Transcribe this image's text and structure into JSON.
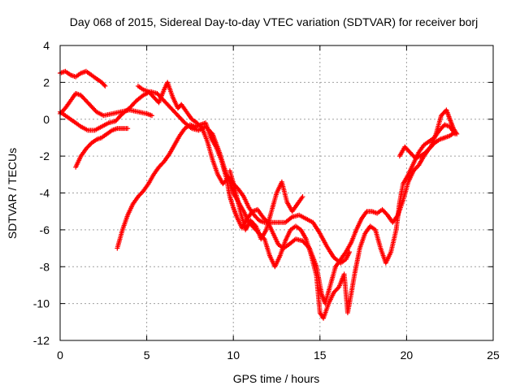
{
  "chart_data": {
    "type": "scatter",
    "title": "Day 068 of 2015, Sidereal Day-to-day VTEC variation (SDTVAR) for receiver borj",
    "xlabel": "GPS time / hours",
    "ylabel": "SDTVAR / TECUs",
    "xlim": [
      0,
      25
    ],
    "ylim": [
      -12,
      4
    ],
    "xticks": [
      0,
      5,
      10,
      15,
      20,
      25
    ],
    "yticks": [
      -12,
      -10,
      -8,
      -6,
      -4,
      -2,
      0,
      2,
      4
    ],
    "grid": true,
    "marker": "+",
    "series_color": "#ff0000",
    "series": [
      {
        "values": [
          [
            0.0,
            2.5
          ],
          [
            0.3,
            2.6
          ],
          [
            0.6,
            2.4
          ],
          [
            0.9,
            2.3
          ],
          [
            1.2,
            2.5
          ],
          [
            1.5,
            2.6
          ],
          [
            1.8,
            2.4
          ],
          [
            2.1,
            2.2
          ],
          [
            2.4,
            2.0
          ],
          [
            2.6,
            1.8
          ]
        ]
      },
      {
        "values": [
          [
            0.0,
            0.3
          ],
          [
            0.3,
            0.6
          ],
          [
            0.6,
            1.0
          ],
          [
            0.9,
            1.4
          ],
          [
            1.2,
            1.3
          ],
          [
            1.5,
            1.0
          ],
          [
            1.8,
            0.7
          ],
          [
            2.1,
            0.4
          ],
          [
            2.5,
            0.2
          ],
          [
            3.0,
            0.3
          ],
          [
            3.5,
            0.4
          ],
          [
            4.0,
            0.5
          ],
          [
            4.5,
            0.4
          ],
          [
            5.0,
            0.3
          ],
          [
            5.3,
            0.2
          ]
        ]
      },
      {
        "values": [
          [
            0.0,
            0.4
          ],
          [
            0.3,
            0.2
          ],
          [
            0.6,
            0.0
          ],
          [
            0.9,
            -0.2
          ],
          [
            1.2,
            -0.4
          ],
          [
            1.6,
            -0.6
          ],
          [
            2.0,
            -0.6
          ],
          [
            2.4,
            -0.4
          ],
          [
            2.8,
            -0.2
          ],
          [
            3.2,
            -0.1
          ],
          [
            3.6,
            0.3
          ],
          [
            4.0,
            0.6
          ],
          [
            4.4,
            1.0
          ],
          [
            4.8,
            1.3
          ],
          [
            5.2,
            1.5
          ],
          [
            5.6,
            1.4
          ],
          [
            6.0,
            1.0
          ],
          [
            6.4,
            0.6
          ],
          [
            6.8,
            0.2
          ],
          [
            7.2,
            -0.2
          ],
          [
            7.6,
            -0.5
          ],
          [
            8.0,
            -0.6
          ],
          [
            8.4,
            -0.4
          ],
          [
            8.8,
            -0.8
          ],
          [
            9.2,
            -1.8
          ],
          [
            9.6,
            -3.0
          ],
          [
            10.0,
            -3.5
          ],
          [
            10.3,
            -3.8
          ],
          [
            10.6,
            -4.2
          ],
          [
            10.9,
            -4.8
          ],
          [
            11.2,
            -5.2
          ],
          [
            11.5,
            -5.5
          ],
          [
            11.8,
            -5.6
          ],
          [
            12.2,
            -5.6
          ],
          [
            12.6,
            -5.6
          ],
          [
            13.0,
            -5.6
          ],
          [
            13.4,
            -5.3
          ],
          [
            13.8,
            -5.2
          ],
          [
            14.2,
            -5.4
          ],
          [
            14.6,
            -5.6
          ],
          [
            15.0,
            -6.2
          ],
          [
            15.4,
            -6.9
          ],
          [
            15.8,
            -7.5
          ],
          [
            16.2,
            -7.8
          ],
          [
            16.5,
            -7.6
          ],
          [
            16.7,
            -7.2
          ]
        ]
      },
      {
        "values": [
          [
            3.3,
            -7.0
          ],
          [
            3.6,
            -6.0
          ],
          [
            3.9,
            -5.2
          ],
          [
            4.2,
            -4.6
          ],
          [
            4.5,
            -4.2
          ],
          [
            4.8,
            -3.9
          ],
          [
            5.1,
            -3.5
          ],
          [
            5.4,
            -3.0
          ],
          [
            5.7,
            -2.6
          ],
          [
            6.0,
            -2.3
          ],
          [
            6.3,
            -1.9
          ],
          [
            6.6,
            -1.4
          ],
          [
            6.9,
            -0.9
          ],
          [
            7.2,
            -0.5
          ],
          [
            7.5,
            -0.3
          ],
          [
            7.8,
            -0.4
          ],
          [
            8.1,
            -0.3
          ],
          [
            8.4,
            -0.2
          ],
          [
            8.7,
            -1.0
          ],
          [
            9.0,
            -1.5
          ],
          [
            9.3,
            -2.2
          ],
          [
            9.6,
            -3.2
          ],
          [
            9.8,
            -4.2
          ],
          [
            10.0,
            -4.8
          ],
          [
            10.2,
            -5.3
          ],
          [
            10.5,
            -5.9
          ],
          [
            10.8,
            -5.4
          ],
          [
            11.1,
            -5.0
          ],
          [
            11.4,
            -4.9
          ],
          [
            11.7,
            -5.3
          ],
          [
            12.0,
            -5.6
          ],
          [
            12.3,
            -6.2
          ],
          [
            12.6,
            -6.8
          ],
          [
            12.9,
            -7.0
          ],
          [
            13.2,
            -6.8
          ],
          [
            13.6,
            -6.5
          ],
          [
            14.0,
            -6.6
          ],
          [
            14.4,
            -7.0
          ],
          [
            14.8,
            -8.0
          ],
          [
            15.1,
            -9.5
          ],
          [
            15.3,
            -10.0
          ],
          [
            15.6,
            -9.0
          ],
          [
            15.9,
            -8.0
          ],
          [
            16.2,
            -7.6
          ],
          [
            16.5,
            -7.2
          ],
          [
            16.8,
            -6.7
          ],
          [
            17.1,
            -6.0
          ],
          [
            17.4,
            -5.4
          ],
          [
            17.7,
            -5.0
          ],
          [
            18.0,
            -5.0
          ],
          [
            18.3,
            -5.1
          ],
          [
            18.6,
            -4.9
          ],
          [
            18.9,
            -5.2
          ],
          [
            19.2,
            -5.6
          ],
          [
            19.5,
            -5.2
          ],
          [
            19.8,
            -4.4
          ],
          [
            20.1,
            -3.4
          ],
          [
            20.4,
            -2.8
          ],
          [
            20.7,
            -2.5
          ],
          [
            21.0,
            -2.0
          ],
          [
            21.3,
            -1.6
          ],
          [
            21.6,
            -1.3
          ],
          [
            21.9,
            -1.1
          ],
          [
            22.2,
            -1.0
          ],
          [
            22.5,
            -0.9
          ],
          [
            22.8,
            -0.7
          ]
        ]
      },
      {
        "values": [
          [
            0.9,
            -2.6
          ],
          [
            1.2,
            -2.0
          ],
          [
            1.5,
            -1.6
          ],
          [
            1.8,
            -1.3
          ],
          [
            2.1,
            -1.1
          ],
          [
            2.4,
            -1.0
          ],
          [
            2.7,
            -0.8
          ],
          [
            3.0,
            -0.6
          ],
          [
            3.3,
            -0.5
          ],
          [
            3.6,
            -0.5
          ],
          [
            3.9,
            -0.5
          ]
        ]
      },
      {
        "values": [
          [
            4.5,
            1.8
          ],
          [
            4.8,
            1.6
          ],
          [
            5.1,
            1.5
          ],
          [
            5.4,
            1.2
          ],
          [
            5.7,
            0.9
          ],
          [
            6.0,
            1.6
          ],
          [
            6.2,
            2.0
          ],
          [
            6.5,
            1.2
          ],
          [
            6.8,
            0.6
          ],
          [
            7.0,
            0.8
          ],
          [
            7.3,
            0.4
          ],
          [
            7.6,
            0.0
          ],
          [
            7.9,
            -0.2
          ],
          [
            8.2,
            -0.5
          ],
          [
            8.5,
            -1.2
          ],
          [
            8.8,
            -2.2
          ],
          [
            9.1,
            -3.0
          ],
          [
            9.4,
            -3.5
          ],
          [
            9.7,
            -3.2
          ],
          [
            10.0,
            -4.0
          ],
          [
            10.3,
            -4.5
          ],
          [
            10.6,
            -5.0
          ],
          [
            10.9,
            -5.6
          ],
          [
            11.2,
            -5.9
          ],
          [
            11.5,
            -6.2
          ],
          [
            11.8,
            -6.5
          ],
          [
            12.1,
            -7.4
          ],
          [
            12.4,
            -8.0
          ],
          [
            12.7,
            -7.4
          ],
          [
            13.0,
            -6.6
          ],
          [
            13.3,
            -6.0
          ],
          [
            13.6,
            -5.8
          ],
          [
            13.9,
            -6.0
          ],
          [
            14.2,
            -6.5
          ],
          [
            14.5,
            -7.4
          ],
          [
            14.8,
            -8.5
          ],
          [
            15.0,
            -10.5
          ],
          [
            15.2,
            -10.8
          ],
          [
            15.5,
            -10.0
          ],
          [
            15.8,
            -9.4
          ],
          [
            16.1,
            -9.1
          ],
          [
            16.4,
            -8.4
          ],
          [
            16.6,
            -10.5
          ],
          [
            16.8,
            -9.5
          ],
          [
            17.0,
            -8.4
          ],
          [
            17.3,
            -7.0
          ],
          [
            17.6,
            -6.2
          ],
          [
            17.9,
            -5.8
          ],
          [
            18.2,
            -6.0
          ],
          [
            18.5,
            -7.0
          ],
          [
            18.8,
            -7.8
          ],
          [
            19.1,
            -7.2
          ],
          [
            19.4,
            -6.0
          ],
          [
            19.6,
            -4.5
          ],
          [
            19.8,
            -3.5
          ],
          [
            20.1,
            -3.0
          ],
          [
            20.4,
            -2.4
          ],
          [
            20.7,
            -1.8
          ],
          [
            21.0,
            -1.4
          ],
          [
            21.3,
            -1.2
          ],
          [
            21.6,
            -1.0
          ],
          [
            21.9,
            -0.6
          ],
          [
            22.2,
            -0.3
          ],
          [
            22.5,
            -0.4
          ],
          [
            22.8,
            -0.8
          ]
        ]
      },
      {
        "values": [
          [
            9.8,
            -2.8
          ],
          [
            10.1,
            -3.8
          ],
          [
            10.4,
            -5.0
          ],
          [
            10.7,
            -6.0
          ],
          [
            11.0,
            -5.5
          ],
          [
            11.3,
            -5.8
          ],
          [
            11.6,
            -6.5
          ],
          [
            11.9,
            -6.0
          ],
          [
            12.2,
            -5.0
          ],
          [
            12.5,
            -4.0
          ],
          [
            12.8,
            -3.4
          ],
          [
            13.1,
            -4.5
          ],
          [
            13.4,
            -5.0
          ],
          [
            13.7,
            -4.6
          ],
          [
            14.0,
            -4.2
          ]
        ]
      },
      {
        "values": [
          [
            19.6,
            -2.0
          ],
          [
            19.9,
            -1.5
          ],
          [
            20.2,
            -1.8
          ],
          [
            20.5,
            -2.1
          ],
          [
            20.8,
            -2.0
          ],
          [
            21.1,
            -1.8
          ],
          [
            21.4,
            -1.5
          ],
          [
            21.7,
            -0.8
          ],
          [
            22.0,
            0.2
          ],
          [
            22.3,
            0.5
          ],
          [
            22.5,
            0.0
          ],
          [
            22.7,
            -0.5
          ],
          [
            22.9,
            -0.8
          ]
        ]
      }
    ]
  }
}
